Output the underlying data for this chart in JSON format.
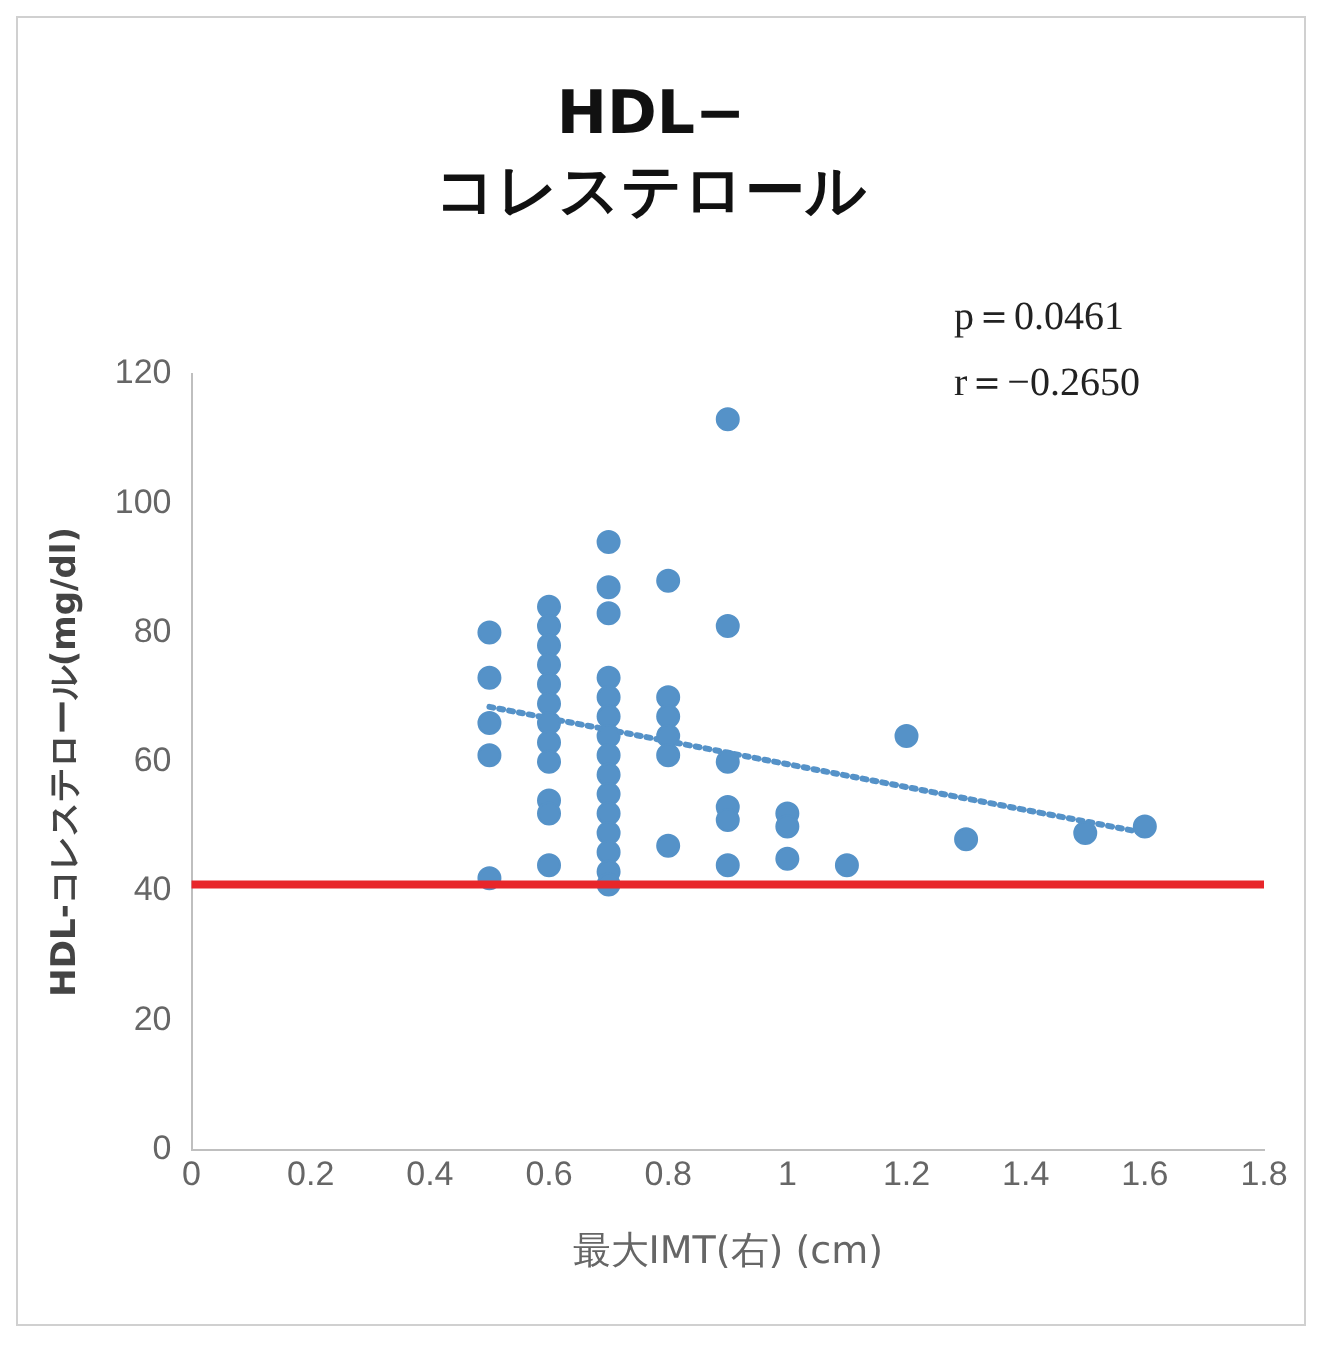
{
  "chart_data": {
    "type": "scatter",
    "title": "HDL−\nコレステロール",
    "xlabel": "最大IMT(右) (cm)",
    "ylabel": "HDL-コレステロール(mg/dl)",
    "annotations": [
      "p＝0.0461",
      "r＝−0.2650"
    ],
    "xlim": [
      0,
      1.8
    ],
    "xticks": [
      0,
      0.2,
      0.4,
      0.6,
      0.8,
      1,
      1.2,
      1.4,
      1.6,
      1.8
    ],
    "ylim": [
      0,
      120
    ],
    "yticks": [
      0,
      20,
      40,
      60,
      80,
      100,
      120
    ],
    "grid": false,
    "legend": false,
    "marker": "circle",
    "series": [
      {
        "color": "#5592c8",
        "x": [
          0.5,
          0.5,
          0.5,
          0.5,
          0.5,
          0.6,
          0.6,
          0.6,
          0.6,
          0.6,
          0.6,
          0.6,
          0.6,
          0.6,
          0.6,
          0.6,
          0.6,
          0.7,
          0.7,
          0.7,
          0.7,
          0.7,
          0.7,
          0.7,
          0.7,
          0.7,
          0.7,
          0.7,
          0.7,
          0.7,
          0.7,
          0.7,
          0.8,
          0.8,
          0.8,
          0.8,
          0.8,
          0.8,
          0.9,
          0.9,
          0.9,
          0.9,
          0.9,
          0.9,
          1,
          1,
          1,
          1.1,
          1.2,
          1.3,
          1.5,
          1.6
        ],
        "values": [
          80,
          73,
          66,
          61,
          42,
          84,
          81,
          78,
          75,
          72,
          69,
          66,
          63,
          60,
          54,
          52,
          44,
          94,
          87,
          83,
          73,
          70,
          67,
          64,
          61,
          58,
          55,
          52,
          49,
          46,
          43,
          41,
          88,
          70,
          67,
          64,
          61,
          47,
          113,
          81,
          60,
          53,
          51,
          44,
          52,
          50,
          45,
          44,
          64,
          48,
          49,
          50
        ]
      },
      {
        "type": "line",
        "color": "#5592c8",
        "line_style": "dotted",
        "marker": "none",
        "x": [
          0.5,
          1.6
        ],
        "values": [
          68.5,
          49
        ]
      }
    ],
    "ref_lines": [
      {
        "axis": "y",
        "value": 41,
        "color": "#e8262a"
      }
    ]
  }
}
